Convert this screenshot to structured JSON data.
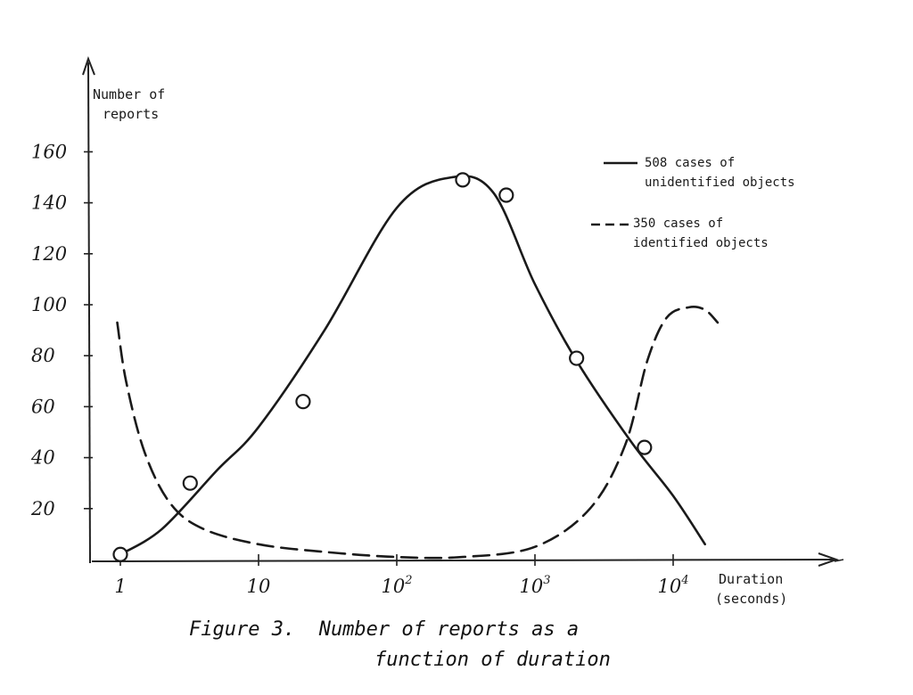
{
  "chart_data": {
    "type": "line",
    "x_scale": "log",
    "xlim": [
      1,
      20000
    ],
    "ylim": [
      0,
      160
    ],
    "y_ticks": [
      20,
      40,
      60,
      80,
      100,
      120,
      140,
      160
    ],
    "y_tick_labels": [
      "20",
      "40",
      "60",
      "80",
      "100",
      "120",
      "140",
      "160"
    ],
    "x_ticks": [
      1,
      10,
      100,
      1000,
      10000
    ],
    "x_tick_labels": [
      {
        "base": "1",
        "exp": ""
      },
      {
        "base": "10",
        "exp": ""
      },
      {
        "base": "10",
        "exp": "2"
      },
      {
        "base": "10",
        "exp": "3"
      },
      {
        "base": "10",
        "exp": "4"
      }
    ],
    "xlabel": [
      "Duration",
      "(seconds)"
    ],
    "ylabel": [
      "Number of",
      "reports"
    ],
    "legend": [
      "508 cases of",
      "unidentified objects",
      "350 cases of",
      "identified objects"
    ],
    "legend_placement": "top-right",
    "grid": false,
    "series": [
      {
        "name": "508 cases of unidentified objects",
        "style": "solid",
        "markers": true,
        "x": [
          1,
          3.2,
          21,
          300,
          620,
          2000,
          6200
        ],
        "y": [
          2,
          30,
          62,
          149,
          143,
          79,
          44
        ],
        "curve": [
          [
            1,
            2
          ],
          [
            2,
            12
          ],
          [
            5,
            35
          ],
          [
            10,
            52
          ],
          [
            30,
            90
          ],
          [
            100,
            138
          ],
          [
            250,
            150
          ],
          [
            500,
            144
          ],
          [
            1000,
            108
          ],
          [
            2000,
            78
          ],
          [
            5000,
            46
          ],
          [
            10000,
            25
          ],
          [
            17000,
            6
          ]
        ]
      },
      {
        "name": "350 cases of identified objects",
        "style": "dashed",
        "markers": false,
        "curve": [
          [
            0.95,
            93
          ],
          [
            1.1,
            70
          ],
          [
            1.5,
            42
          ],
          [
            2.3,
            22
          ],
          [
            4,
            12
          ],
          [
            10,
            6
          ],
          [
            30,
            3
          ],
          [
            100,
            1
          ],
          [
            300,
            1
          ],
          [
            1000,
            5
          ],
          [
            2500,
            20
          ],
          [
            4500,
            45
          ],
          [
            6500,
            78
          ],
          [
            9000,
            95
          ],
          [
            13000,
            99
          ],
          [
            17000,
            98
          ],
          [
            21000,
            93
          ]
        ]
      }
    ]
  },
  "caption": {
    "line1": "Figure 3.  Number of reports as a",
    "line2": "function of duration"
  }
}
